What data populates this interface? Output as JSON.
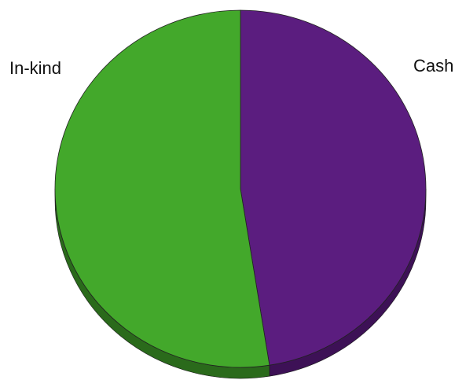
{
  "chart_data": {
    "type": "pie",
    "title": "",
    "slices": [
      {
        "label": "Cash",
        "value": 47.5,
        "color": "#5b1d7f",
        "side_color": "#3d1156"
      },
      {
        "label": "In-kind",
        "value": 52.5,
        "color": "#43a82b",
        "side_color": "#2a6a1b"
      }
    ],
    "start": "top",
    "direction": "clockwise",
    "style": "3D tilted pie, no legend, labels outside"
  }
}
